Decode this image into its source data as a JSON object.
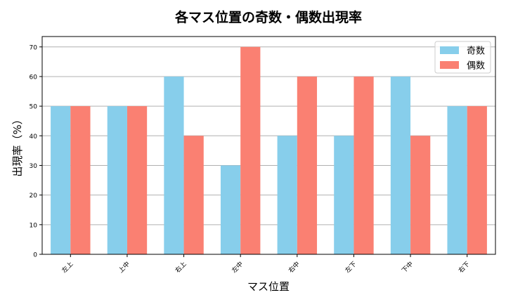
{
  "chart_data": {
    "type": "bar",
    "title": "各マス位置の奇数・偶数出現率",
    "xlabel": "マス位置",
    "ylabel": "出現率（%）",
    "categories": [
      "左上",
      "上中",
      "右上",
      "左中",
      "右中",
      "左下",
      "下中",
      "右下"
    ],
    "series": [
      {
        "name": "奇数",
        "values": [
          50,
          50,
          60,
          30,
          40,
          40,
          60,
          50
        ],
        "color": "#87CEEB"
      },
      {
        "name": "偶数",
        "values": [
          50,
          50,
          40,
          70,
          60,
          60,
          40,
          50
        ],
        "color": "#FA8072"
      }
    ],
    "ylim": [
      0,
      73.5
    ],
    "yticks": [
      0,
      10,
      20,
      30,
      40,
      50,
      60,
      70
    ],
    "grid": "y",
    "legend": "top-right"
  }
}
